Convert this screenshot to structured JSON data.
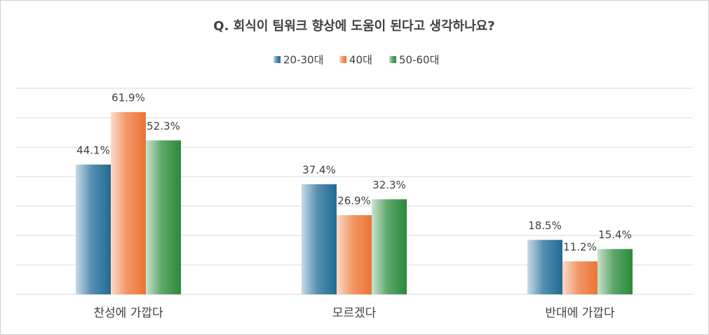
{
  "chart_data": {
    "type": "bar",
    "title": "Q. 회식이 팀워크 향상에 도움이 된다고 생각하나요?",
    "categories": [
      "찬성에 가깝다",
      "모르겠다",
      "반대에 가깝다"
    ],
    "series": [
      {
        "name": "20-30대",
        "color": "#1f6a95",
        "values": [
          44.1,
          37.4,
          18.5
        ],
        "value_labels": [
          "44.1%",
          "37.4%",
          "18.5%"
        ]
      },
      {
        "name": "40대",
        "color": "#ec7434",
        "values": [
          61.9,
          26.9,
          11.2
        ],
        "value_labels": [
          "61.9%",
          "26.9%",
          "11.2%"
        ]
      },
      {
        "name": "50-60대",
        "color": "#2a8a3a",
        "values": [
          52.3,
          32.3,
          15.4
        ],
        "value_labels": [
          "52.3%",
          "32.3%",
          "15.4%"
        ]
      }
    ],
    "ylim": [
      0,
      70
    ],
    "yticks": [
      0,
      10,
      20,
      30,
      40,
      50,
      60,
      70
    ],
    "grid": true,
    "legend": "top"
  }
}
